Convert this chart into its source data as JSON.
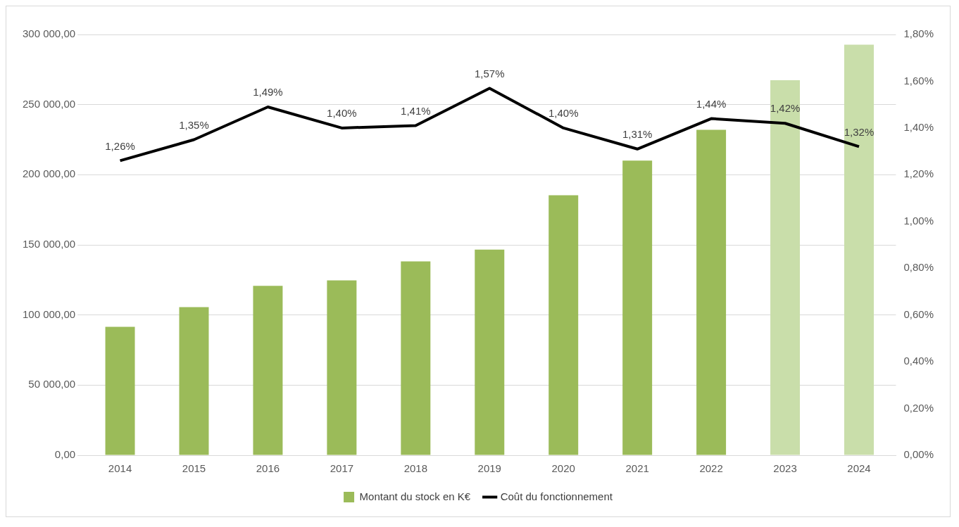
{
  "chart_data": {
    "type": "bar",
    "categories": [
      "2014",
      "2015",
      "2016",
      "2017",
      "2018",
      "2019",
      "2020",
      "2021",
      "2022",
      "2023",
      "2024"
    ],
    "series": [
      {
        "name": "Montant du stock en K€",
        "color": "#9bbb59",
        "colors": [
          "#9bbb59",
          "#9bbb59",
          "#9bbb59",
          "#9bbb59",
          "#9bbb59",
          "#9bbb59",
          "#9bbb59",
          "#9bbb59",
          "#9bbb59",
          "#c9deaa",
          "#c9deaa"
        ],
        "values": [
          91600,
          105600,
          120800,
          124700,
          138200,
          146600,
          185400,
          210100,
          232000,
          267400,
          292700
        ]
      },
      {
        "name": "Coût du fonctionnement",
        "type": "line",
        "axis": "y2",
        "color": "#000000",
        "marker": "none",
        "values": [
          1.26,
          1.35,
          1.49,
          1.4,
          1.41,
          1.57,
          1.4,
          1.31,
          1.44,
          1.42,
          1.32
        ],
        "value_labels": [
          "1,26%",
          "1,35%",
          "1,49%",
          "1,40%",
          "1,41%",
          "1,57%",
          "1,40%",
          "1,31%",
          "1,44%",
          "1,42%",
          "1,32%"
        ]
      }
    ],
    "ylim": [
      0,
      300000
    ],
    "yticks": [
      {
        "value": 0,
        "label": "0,00"
      },
      {
        "value": 50000,
        "label": "50 000,00"
      },
      {
        "value": 100000,
        "label": "100 000,00"
      },
      {
        "value": 150000,
        "label": "150 000,00"
      },
      {
        "value": 200000,
        "label": "200 000,00"
      },
      {
        "value": 250000,
        "label": "250 000,00"
      },
      {
        "value": 300000,
        "label": "300 000,00"
      }
    ],
    "y2lim": [
      0,
      1.8
    ],
    "y2ticks": [
      {
        "value": 0,
        "label": "0,00%"
      },
      {
        "value": 0.2,
        "label": "0,20%"
      },
      {
        "value": 0.4,
        "label": "0,40%"
      },
      {
        "value": 0.6,
        "label": "0,60%"
      },
      {
        "value": 0.8,
        "label": "0,80%"
      },
      {
        "value": 1.0,
        "label": "1,00%"
      },
      {
        "value": 1.2,
        "label": "1,20%"
      },
      {
        "value": 1.4,
        "label": "1,40%"
      },
      {
        "value": 1.6,
        "label": "1,60%"
      },
      {
        "value": 1.8,
        "label": "1,80%"
      }
    ],
    "grid": "y",
    "legend": "bottom"
  }
}
